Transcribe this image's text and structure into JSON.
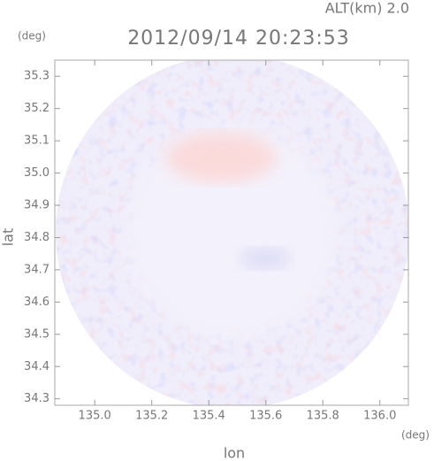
{
  "chart_data": {
    "type": "radar-field",
    "title": "2012/09/14 20:23:53",
    "altitude_label": "ALT(km) 2.0",
    "x_label": "lon",
    "y_label": "lat",
    "x_unit": "(deg)",
    "y_unit": "(deg)",
    "xlim": [
      134.86,
      136.1
    ],
    "xticks": [
      {
        "value": 135.0,
        "label": "135.0"
      },
      135.2,
      135.4,
      135.6,
      135.8,
      {
        "value": 136.0,
        "label": "136.0"
      }
    ],
    "ylim": [
      34.28,
      35.35
    ],
    "yticks": [
      34.3,
      34.4,
      34.5,
      34.6,
      34.7,
      34.8,
      34.9,
      {
        "value": 35.0,
        "label": "35.0"
      },
      35.1,
      35.2,
      35.3
    ]
  }
}
